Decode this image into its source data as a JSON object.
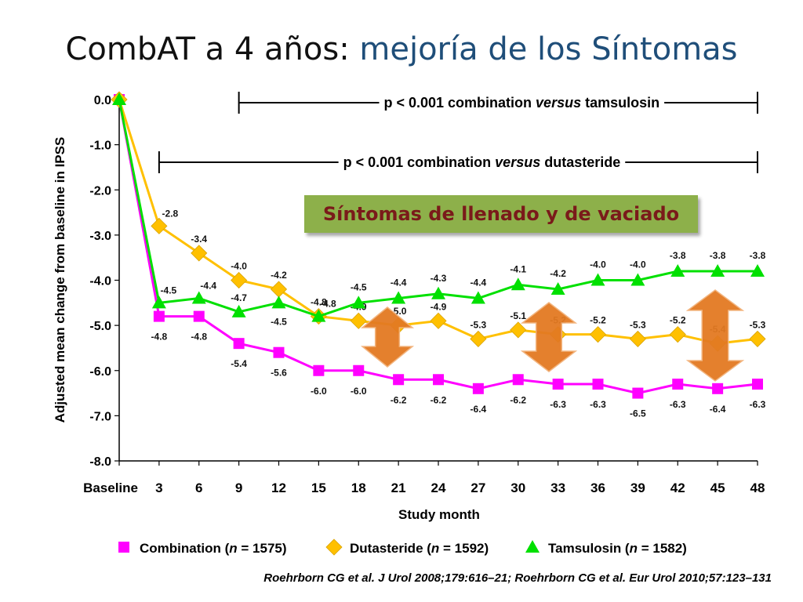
{
  "slide": {
    "title_main": "CombAT a 4 años: ",
    "title_accent": "mejoría de los Síntomas",
    "callout": "Síntomas de llenado y de vaciado",
    "citation": "Roehrborn CG et al. J Urol 2008;179:616–21; Roehrborn CG et al. Eur Urol 2010;57:123–131"
  },
  "chart_data": {
    "type": "line",
    "ylabel": "Adjusted mean change from baseline in IPSS",
    "xlabel": "Study month",
    "ylim": [
      -8.0,
      0.0
    ],
    "y_ticks": [
      "0.0",
      "-1.0",
      "-2.0",
      "-3.0",
      "-4.0",
      "-5.0",
      "-6.0",
      "-7.0",
      "-8.0"
    ],
    "x_ticks": [
      "Baseline",
      "3",
      "6",
      "9",
      "12",
      "15",
      "18",
      "21",
      "24",
      "27",
      "30",
      "33",
      "36",
      "39",
      "42",
      "45",
      "48"
    ],
    "x": [
      0,
      3,
      6,
      9,
      12,
      15,
      18,
      21,
      24,
      27,
      30,
      33,
      36,
      39,
      42,
      45,
      48
    ],
    "grid": false,
    "legend_position": "bottom",
    "annotations": [
      {
        "prefix": "p < 0.001 combination ",
        "em": "versus",
        "suffix": " tamsulosin",
        "from": 9,
        "to": 48
      },
      {
        "prefix": "p < 0.001 combination ",
        "em": "versus",
        "suffix": " dutasteride",
        "from": 3,
        "to": 48
      }
    ],
    "series": [
      {
        "name": "Combination",
        "legend_suffix": " = 1575)",
        "color": "#ff00ff",
        "marker": "square",
        "values": [
          0.0,
          -4.8,
          -4.8,
          -5.4,
          -5.6,
          -6.0,
          -6.0,
          -6.2,
          -6.2,
          -6.4,
          -6.2,
          -6.3,
          -6.3,
          -6.5,
          -6.3,
          -6.4,
          -6.3
        ]
      },
      {
        "name": "Dutasteride",
        "legend_suffix": " = 1592)",
        "color": "#ffc000",
        "marker": "diamond",
        "values": [
          0.0,
          -2.8,
          -3.4,
          -4.0,
          -4.2,
          -4.8,
          -4.9,
          -5.0,
          -4.9,
          -5.3,
          -5.1,
          -5.2,
          -5.2,
          -5.3,
          -5.2,
          -5.4,
          -5.3
        ]
      },
      {
        "name": "Tamsulosin",
        "legend_suffix": " = 1582)",
        "color": "#00e000",
        "marker": "triangle",
        "values": [
          0.0,
          -4.5,
          -4.4,
          -4.7,
          -4.5,
          -4.8,
          -4.5,
          -4.4,
          -4.3,
          -4.4,
          -4.1,
          -4.2,
          -4.0,
          -4.0,
          -3.8,
          -3.8,
          -3.8
        ]
      }
    ]
  }
}
